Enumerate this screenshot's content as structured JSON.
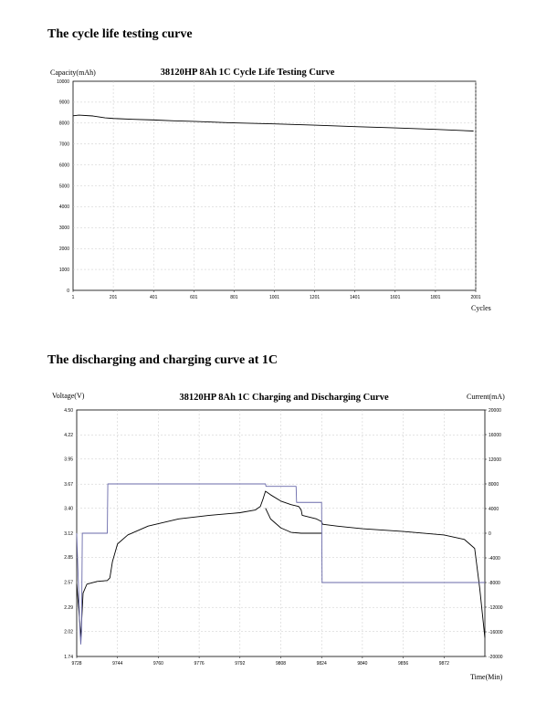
{
  "sections": [
    {
      "title": "The cycle life testing curve"
    },
    {
      "title": "The discharging and charging curve at 1C"
    }
  ],
  "chart_data": [
    {
      "type": "line",
      "title": "38120HP 8Ah 1C Cycle Life Testing Curve",
      "ylabel": "Capacity(mAh)",
      "xlabel": "Cycles",
      "xlim": [
        1,
        2001
      ],
      "ylim": [
        0,
        10000
      ],
      "x_ticks": [
        1,
        201,
        401,
        601,
        801,
        1001,
        1201,
        1401,
        1601,
        1801,
        2001
      ],
      "y_ticks": [
        0,
        1000,
        2000,
        3000,
        4000,
        5000,
        6000,
        7000,
        8000,
        9000,
        10000
      ],
      "grid": true,
      "series": [
        {
          "color": "#000000",
          "x": [
            1,
            30,
            100,
            160,
            201,
            300,
            401,
            500,
            601,
            800,
            1001,
            1200,
            1401,
            1600,
            1801,
            1990
          ],
          "y": [
            8350,
            8380,
            8340,
            8250,
            8220,
            8180,
            8150,
            8110,
            8080,
            8010,
            7960,
            7900,
            7830,
            7770,
            7700,
            7620
          ]
        }
      ]
    },
    {
      "type": "line",
      "title": "38120HP 8Ah 1C Charging and Discharging Curve",
      "ylabel": "Voltage(V)",
      "y2label": "Current(mA)",
      "xlabel": "Time(Min)",
      "xlim": [
        9728,
        9888
      ],
      "ylim": [
        1.74,
        4.5
      ],
      "y2lim": [
        -20000,
        20000
      ],
      "x_ticks": [
        9728,
        9744,
        9760,
        9776,
        9792,
        9808,
        9824,
        9840,
        9856,
        9872
      ],
      "y_ticks": [
        "1.74",
        "2.02",
        "2.29",
        "2.57",
        "2.85",
        "3.12",
        "3.40",
        "3.67",
        "3.95",
        "4.22",
        "4.50"
      ],
      "y2_ticks": [
        -20000,
        -16000,
        -12000,
        -8000,
        -4000,
        0,
        4000,
        8000,
        12000,
        16000,
        20000
      ],
      "grid": true,
      "series": [
        {
          "axis": "left",
          "color": "#000000",
          "x": [
            9728,
            9729,
            9729.6,
            9730.5,
            9732,
            9736,
            9740,
            9741,
            9742,
            9743,
            9744,
            9748,
            9756,
            9768,
            9780,
            9792,
            9798,
            9800,
            9801,
            9802,
            9804,
            9808,
            9812,
            9815,
            9816,
            9816.4,
            9822,
            9824,
            9824.4,
            9830,
            9840,
            9856,
            9872,
            9880,
            9884,
            9886,
            9888
          ],
          "y": [
            2.55,
            2.2,
            1.95,
            2.45,
            2.55,
            2.58,
            2.59,
            2.62,
            2.8,
            2.9,
            3.0,
            3.1,
            3.2,
            3.28,
            3.32,
            3.35,
            3.38,
            3.42,
            3.5,
            3.59,
            3.55,
            3.48,
            3.44,
            3.42,
            3.38,
            3.32,
            3.28,
            3.25,
            3.22,
            3.2,
            3.17,
            3.14,
            3.1,
            3.05,
            2.95,
            2.5,
            1.95
          ]
        },
        {
          "axis": "left",
          "color": "#000000",
          "x": [
            9802,
            9804,
            9808,
            9812,
            9816,
            9824
          ],
          "y": [
            3.4,
            3.28,
            3.18,
            3.13,
            3.12,
            3.12
          ]
        },
        {
          "axis": "right",
          "color": "#6a6aaa",
          "x": [
            9728,
            9729.3,
            9729.6,
            9729.9,
            9730.2,
            9740,
            9740.2,
            9768,
            9792,
            9802,
            9802.2,
            9814,
            9814.2,
            9824,
            9824.2,
            9856,
            9888
          ],
          "y": [
            0,
            -16000,
            -18000,
            -16000,
            0,
            0,
            8000,
            8000,
            8000,
            8000,
            7600,
            7600,
            5000,
            5000,
            -8000,
            -8000,
            -8000
          ]
        }
      ]
    }
  ]
}
